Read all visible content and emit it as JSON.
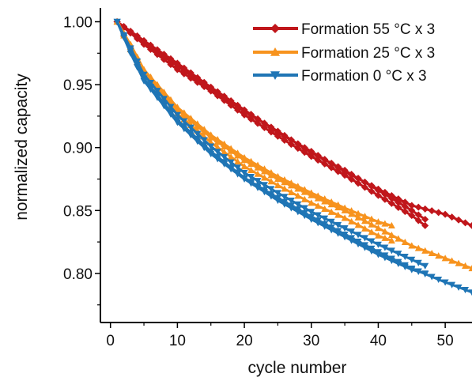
{
  "chart_data": {
    "type": "line",
    "xlabel": "cycle number",
    "ylabel": "normalized capacity",
    "xlim": [
      -1.5,
      54
    ],
    "ylim": [
      0.761,
      1.011
    ],
    "xticks": [
      0,
      10,
      20,
      30,
      40,
      50
    ],
    "yticks": [
      0.8,
      0.85,
      0.9,
      0.95,
      1.0
    ],
    "xtick_labels": [
      "0",
      "10",
      "20",
      "30",
      "40",
      "50"
    ],
    "ytick_labels": [
      "0.80",
      "0.85",
      "0.90",
      "0.95",
      "1.00"
    ],
    "grid": false,
    "legend_position": "top-right",
    "series": [
      {
        "name": "Formation 55 °C x 3",
        "label": "Formation 55 °C x 3",
        "color": "#c0161b",
        "marker": "diamond",
        "runs": [
          {
            "x": [
              1,
              5,
              10,
              15,
              20,
              25,
              30,
              35,
              40,
              45,
              50,
              54
            ],
            "y": [
              1.0,
              0.985,
              0.967,
              0.948,
              0.93,
              0.912,
              0.897,
              0.881,
              0.867,
              0.854,
              0.847,
              0.838
            ]
          },
          {
            "x": [
              1,
              5,
              10,
              15,
              20,
              25,
              30,
              35,
              40,
              45,
              47
            ],
            "y": [
              1.0,
              0.982,
              0.962,
              0.945,
              0.926,
              0.909,
              0.893,
              0.878,
              0.862,
              0.846,
              0.838
            ]
          },
          {
            "x": [
              1,
              5,
              10,
              15,
              20,
              25,
              30,
              35,
              40,
              45,
              47
            ],
            "y": [
              1.0,
              0.983,
              0.965,
              0.946,
              0.929,
              0.913,
              0.896,
              0.882,
              0.866,
              0.85,
              0.843
            ]
          }
        ]
      },
      {
        "name": "Formation 25 °C x 3",
        "label": "Formation 25 °C x 3",
        "color": "#f7931e",
        "marker": "triangle-up",
        "runs": [
          {
            "x": [
              1,
              3,
              5,
              10,
              15,
              20,
              25,
              30,
              35,
              40,
              45,
              50,
              54
            ],
            "y": [
              1.0,
              0.98,
              0.96,
              0.93,
              0.908,
              0.89,
              0.875,
              0.862,
              0.85,
              0.836,
              0.822,
              0.812,
              0.804
            ]
          },
          {
            "x": [
              1,
              3,
              5,
              10,
              15,
              20,
              25,
              30,
              35,
              40,
              42
            ],
            "y": [
              1.0,
              0.978,
              0.958,
              0.927,
              0.904,
              0.885,
              0.87,
              0.856,
              0.844,
              0.83,
              0.826
            ]
          },
          {
            "x": [
              1,
              3,
              5,
              10,
              15,
              20,
              25,
              30,
              35,
              40,
              42
            ],
            "y": [
              1.0,
              0.982,
              0.962,
              0.932,
              0.91,
              0.892,
              0.877,
              0.864,
              0.852,
              0.841,
              0.838
            ]
          }
        ]
      },
      {
        "name": "Formation 0 °C x 3",
        "label": "Formation   0 °C x 3",
        "color": "#1f75b5",
        "marker": "triangle-down",
        "runs": [
          {
            "x": [
              1,
              3,
              5,
              10,
              15,
              20,
              25,
              30,
              35,
              40,
              45,
              50,
              54
            ],
            "y": [
              1.0,
              0.977,
              0.955,
              0.922,
              0.897,
              0.876,
              0.86,
              0.845,
              0.831,
              0.817,
              0.804,
              0.793,
              0.785
            ]
          },
          {
            "x": [
              1,
              3,
              5,
              10,
              15,
              20,
              25,
              30,
              35,
              40,
              45,
              47
            ],
            "y": [
              1.0,
              0.975,
              0.953,
              0.92,
              0.895,
              0.875,
              0.858,
              0.843,
              0.829,
              0.815,
              0.803,
              0.8
            ]
          },
          {
            "x": [
              1,
              3,
              5,
              10,
              15,
              20,
              25,
              30,
              35,
              40,
              45,
              47
            ],
            "y": [
              1.0,
              0.979,
              0.958,
              0.926,
              0.901,
              0.88,
              0.864,
              0.849,
              0.836,
              0.823,
              0.811,
              0.806
            ]
          }
        ]
      }
    ]
  }
}
